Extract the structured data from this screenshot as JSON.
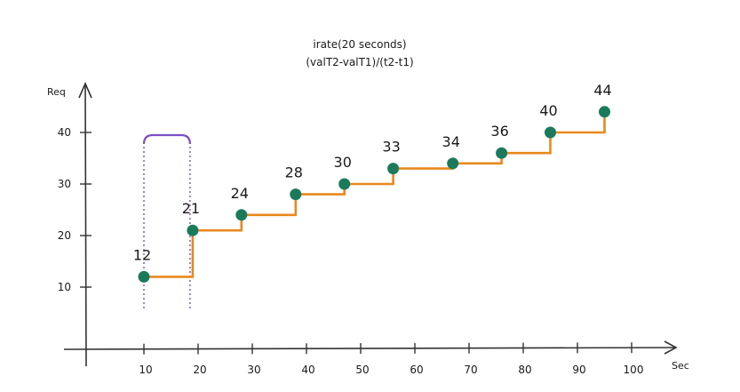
{
  "chart_data": {
    "type": "line",
    "title": "irate(20 seconds)",
    "subtitle": "(valT2-valT1)/(t2-t1)",
    "xlabel": "Sec",
    "ylabel": "Req",
    "x_ticks": [
      "10",
      "20",
      "30",
      "40",
      "50",
      "60",
      "70",
      "80",
      "90",
      "100"
    ],
    "y_ticks": [
      "10",
      "20",
      "30",
      "40"
    ],
    "x": [
      10,
      19,
      28,
      38,
      47,
      56,
      67,
      76,
      85,
      95
    ],
    "values": [
      12,
      21,
      24,
      28,
      30,
      33,
      34,
      36,
      40,
      44
    ],
    "labels": [
      "12",
      "21",
      "24",
      "28",
      "30",
      "33",
      "34",
      "36",
      "40",
      "44"
    ],
    "step": true,
    "grid": false,
    "window_bracket": [
      10,
      19
    ],
    "colors": {
      "line": "#e8891d",
      "point": "#1a7a5c",
      "bracket": "#7b4fc9",
      "axis": "#333333"
    }
  }
}
